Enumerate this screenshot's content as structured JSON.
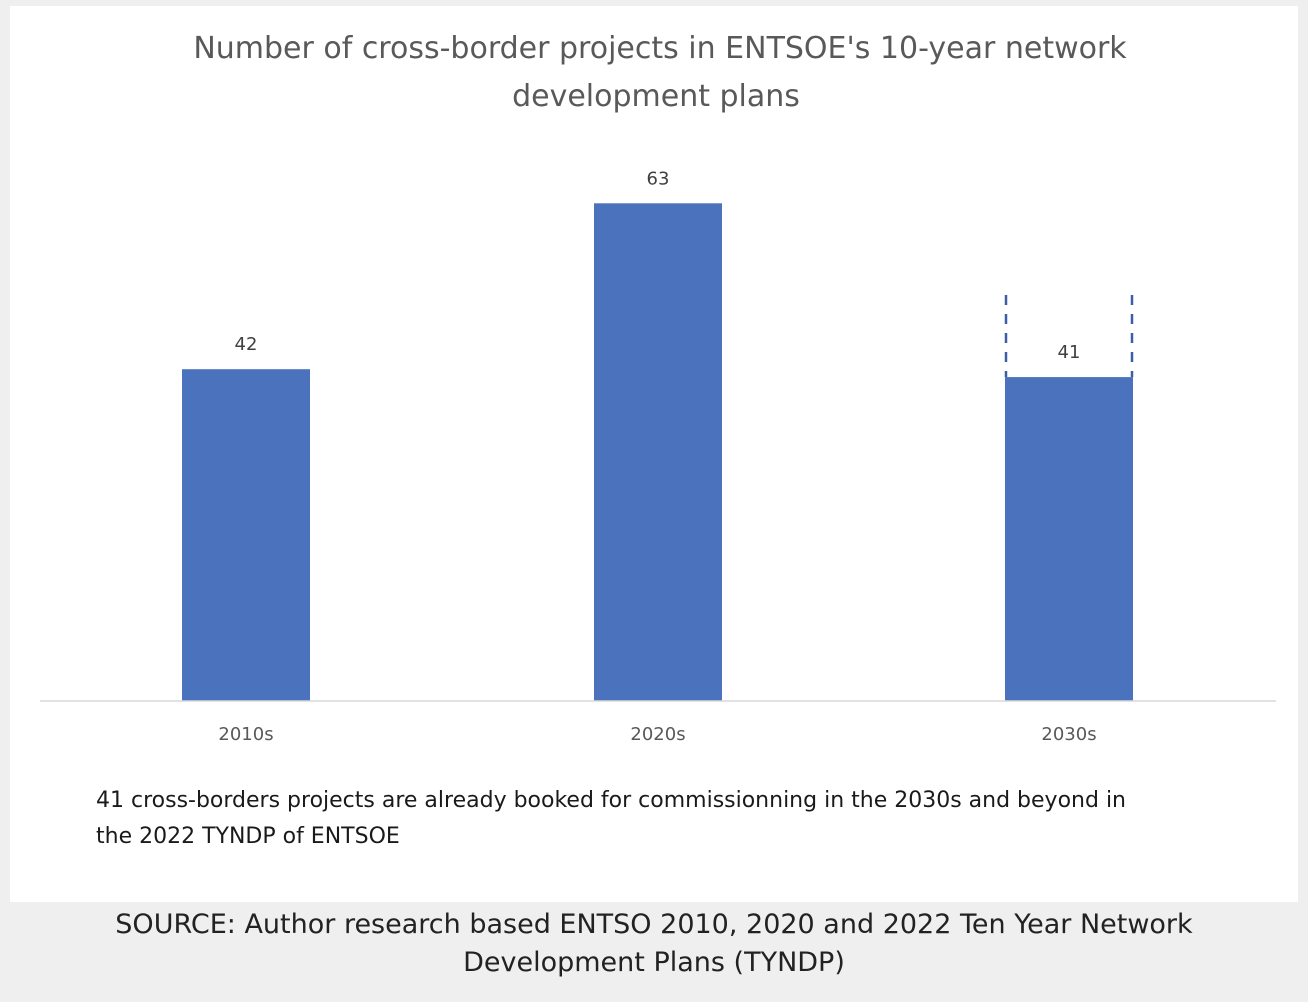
{
  "chart_data": {
    "type": "bar",
    "title_lines": [
      "Number of cross-border projects in ENTSOE's 10-year network",
      "development  plans"
    ],
    "categories": [
      "2010s",
      "2020s",
      "2030s"
    ],
    "values": [
      42,
      63,
      41
    ],
    "data_labels": [
      "42",
      "63",
      "41"
    ],
    "ylim": [
      0,
      70
    ],
    "grid": false,
    "bar_color": "#4a72bd",
    "dashed_extension_category": "2030s",
    "annotation_lines": [
      "41 cross-borders projects are already booked for commissionning  in the 2030s and beyond in",
      "the 2022 TYNDP of ENTSOE"
    ]
  },
  "caption_lines": [
    "SOURCE: Author research based ENTSO 2010, 2020 and 2022 Ten Year Network",
    "Development Plans (TYNDP)"
  ]
}
